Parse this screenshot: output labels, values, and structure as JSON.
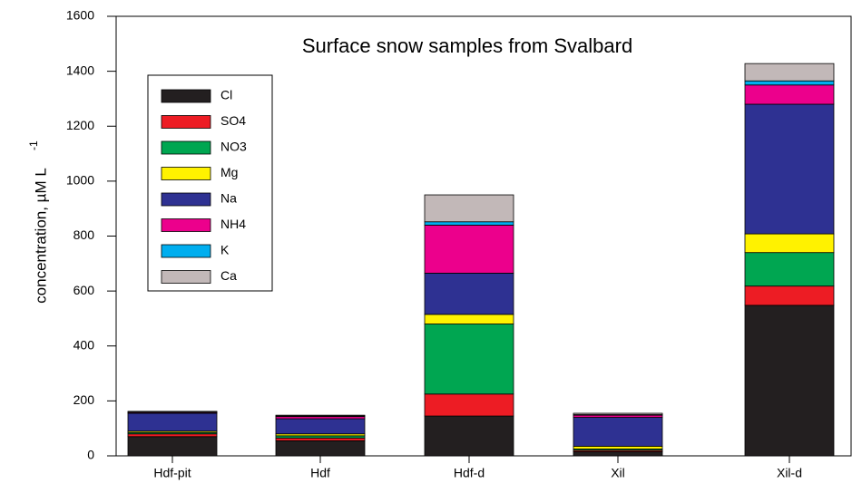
{
  "chart_data": {
    "type": "stacked_bar",
    "title": "Surface snow samples from Svalbard",
    "ylabel": "concentration,  µM L",
    "ylabel_exponent": "-1",
    "categories": [
      "Hdf-pit",
      "Hdf",
      "Hdf-d",
      "Xil",
      "Xil-d"
    ],
    "series": [
      {
        "name": "Cl",
        "color": "#231f20",
        "values": [
          70,
          55,
          145,
          15,
          548
        ]
      },
      {
        "name": "SO4",
        "color": "#ed1c24",
        "values": [
          10,
          10,
          80,
          5,
          70
        ]
      },
      {
        "name": "NO3",
        "color": "#00a651",
        "values": [
          5,
          8,
          255,
          5,
          122
        ]
      },
      {
        "name": "Mg",
        "color": "#fff200",
        "values": [
          5,
          7,
          35,
          10,
          68
        ]
      },
      {
        "name": "Na",
        "color": "#2e3192",
        "values": [
          65,
          55,
          150,
          105,
          472
        ]
      },
      {
        "name": "NH4",
        "color": "#ec008c",
        "values": [
          3,
          8,
          175,
          8,
          70
        ]
      },
      {
        "name": "K",
        "color": "#00aeef",
        "values": [
          1,
          2,
          12,
          2,
          15
        ]
      },
      {
        "name": "Ca",
        "color": "#c2b8b8",
        "values": [
          3,
          3,
          98,
          5,
          63
        ]
      }
    ],
    "ylim": [
      0,
      1600
    ],
    "yticks": [
      0,
      200,
      400,
      600,
      800,
      1000,
      1200,
      1400,
      1600
    ],
    "legend": "upper left"
  }
}
